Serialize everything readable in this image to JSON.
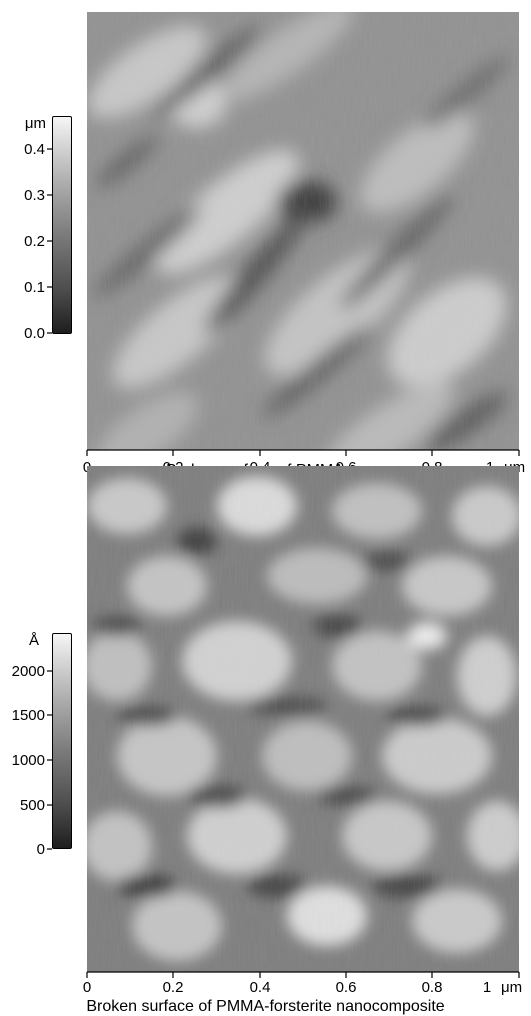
{
  "figure": {
    "panels": [
      {
        "caption": "Broken surface of PMMA",
        "colorbar": {
          "unit": "μm",
          "tick_labels": [
            "0.4",
            "0.3",
            "0.2",
            "0.1",
            "0.0"
          ],
          "tick_values": [
            0.4,
            0.3,
            0.2,
            0.1,
            0.0
          ],
          "range": [
            0.0,
            0.45
          ]
        },
        "x_axis": {
          "tick_labels": [
            "0",
            "0.2",
            "0.4",
            "0.6",
            "0.8",
            "1"
          ],
          "tick_values": [
            0,
            0.2,
            0.4,
            0.6,
            0.8,
            1.0
          ],
          "unit": "μm"
        },
        "image": {
          "description_colors": {
            "dark": "#3c3c3c",
            "mid": "#8e8e8e",
            "light": "#d4d4d4"
          }
        }
      },
      {
        "caption": "Broken surface of PMMA-forsterite nanocomposite",
        "colorbar": {
          "unit": "Å",
          "tick_labels": [
            "2000",
            "1500",
            "1000",
            "500",
            "0"
          ],
          "tick_values": [
            2000,
            1500,
            1000,
            500,
            0
          ],
          "range": [
            0,
            2300
          ]
        },
        "x_axis": {
          "tick_labels": [
            "0",
            "0.2",
            "0.4",
            "0.6",
            "0.8",
            "1"
          ],
          "tick_values": [
            0,
            0.2,
            0.4,
            0.6,
            0.8,
            1.0
          ],
          "unit": "μm"
        },
        "image": {
          "description_colors": {
            "dark": "#3a3a3a",
            "mid": "#9a9a9a",
            "light": "#dedede"
          }
        }
      }
    ]
  }
}
